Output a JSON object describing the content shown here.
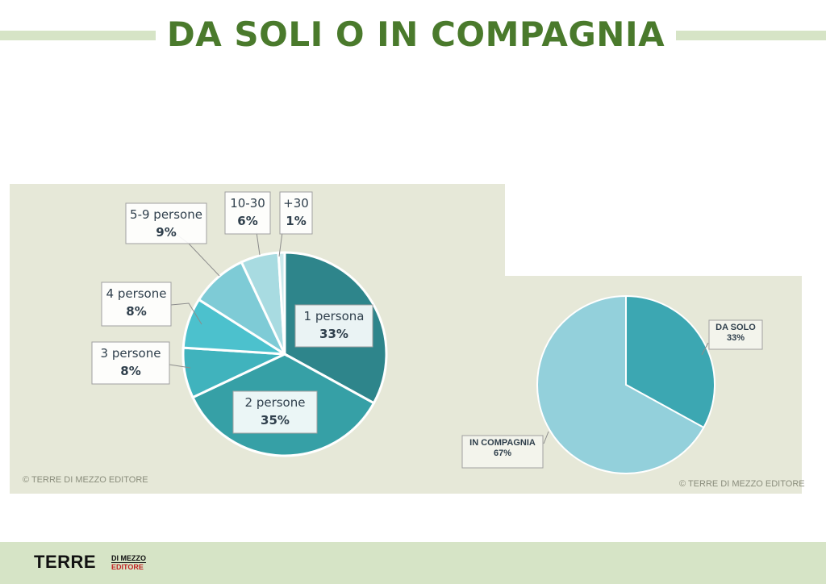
{
  "title": "DA SOLI O IN COMPAGNIA",
  "copyright_left": "© TERRE DI MEZZO EDITORE",
  "copyright_right": "© TERRE DI MEZZO EDITORE",
  "logo": {
    "main": "TERRE",
    "top": "DI MEZZO",
    "bottom": "EDITORE"
  },
  "colors": {
    "title": "#4a7a2c",
    "band": "#d6e4c6",
    "panel": "#e6e8d8"
  },
  "chart_data": [
    {
      "type": "pie",
      "slices": [
        {
          "label": "1 persona",
          "value_label": "33%",
          "value": 33,
          "color": "#2e858b"
        },
        {
          "label": "2 persone",
          "value_label": "35%",
          "value": 35,
          "color": "#36a0a6"
        },
        {
          "label": "3 persone",
          "value_label": "8%",
          "value": 8,
          "color": "#40b3bd"
        },
        {
          "label": "4 persone",
          "value_label": "8%",
          "value": 8,
          "color": "#4cc1cd"
        },
        {
          "label": "5-9 persone",
          "value_label": "9%",
          "value": 9,
          "color": "#7ecbd6"
        },
        {
          "label": "10-30",
          "value_label": "6%",
          "value": 6,
          "color": "#a8dbe1"
        },
        {
          "label": "+30",
          "value_label": "1%",
          "value": 1,
          "color": "#cbe9ec"
        }
      ]
    },
    {
      "type": "pie",
      "slices": [
        {
          "label": "DA SOLO",
          "value_label": "33%",
          "value": 33,
          "color": "#3ca7b2"
        },
        {
          "label": "IN COMPAGNIA",
          "value_label": "67%",
          "value": 67,
          "color": "#93d0db"
        }
      ]
    }
  ]
}
